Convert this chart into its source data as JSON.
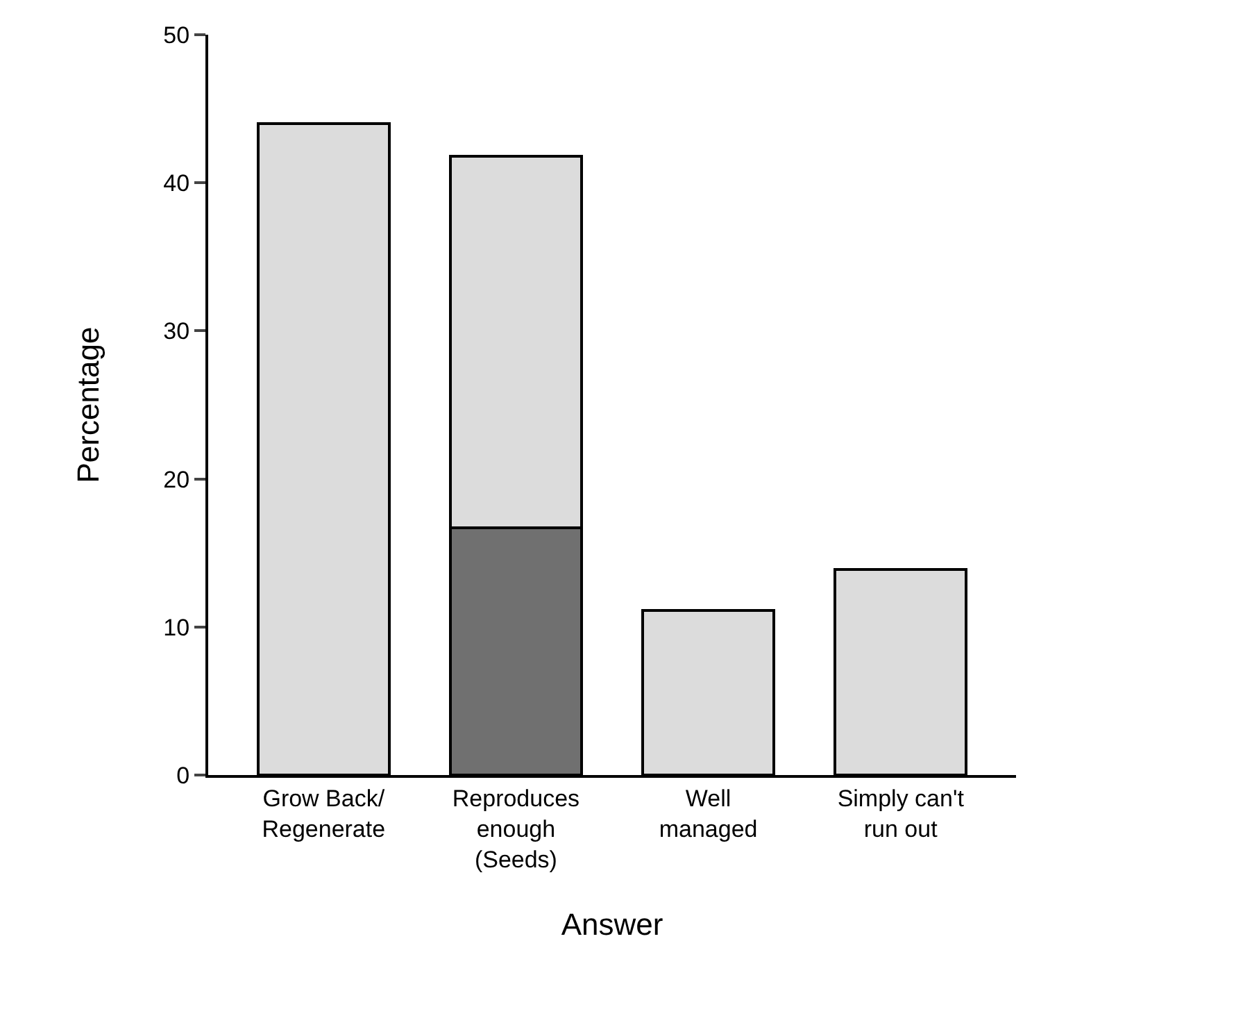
{
  "chart_data": {
    "type": "bar",
    "stacked": true,
    "xlabel": "Answer",
    "ylabel": "Percentage",
    "categories": [
      "Grow Back/\nRegenerate",
      "Reproduces\nenough\n(Seeds)",
      "Well\nmanaged",
      "Simply can't\nrun out"
    ],
    "series": [
      {
        "color": "#707070",
        "values": [
          null,
          16.7,
          null,
          null
        ]
      },
      {
        "color": "#dcdcdc",
        "values": [
          44,
          25.1,
          11.1,
          13.9
        ]
      }
    ],
    "ylim": [
      0,
      50
    ],
    "yticks": [
      0,
      10,
      20,
      30,
      40,
      50
    ]
  }
}
